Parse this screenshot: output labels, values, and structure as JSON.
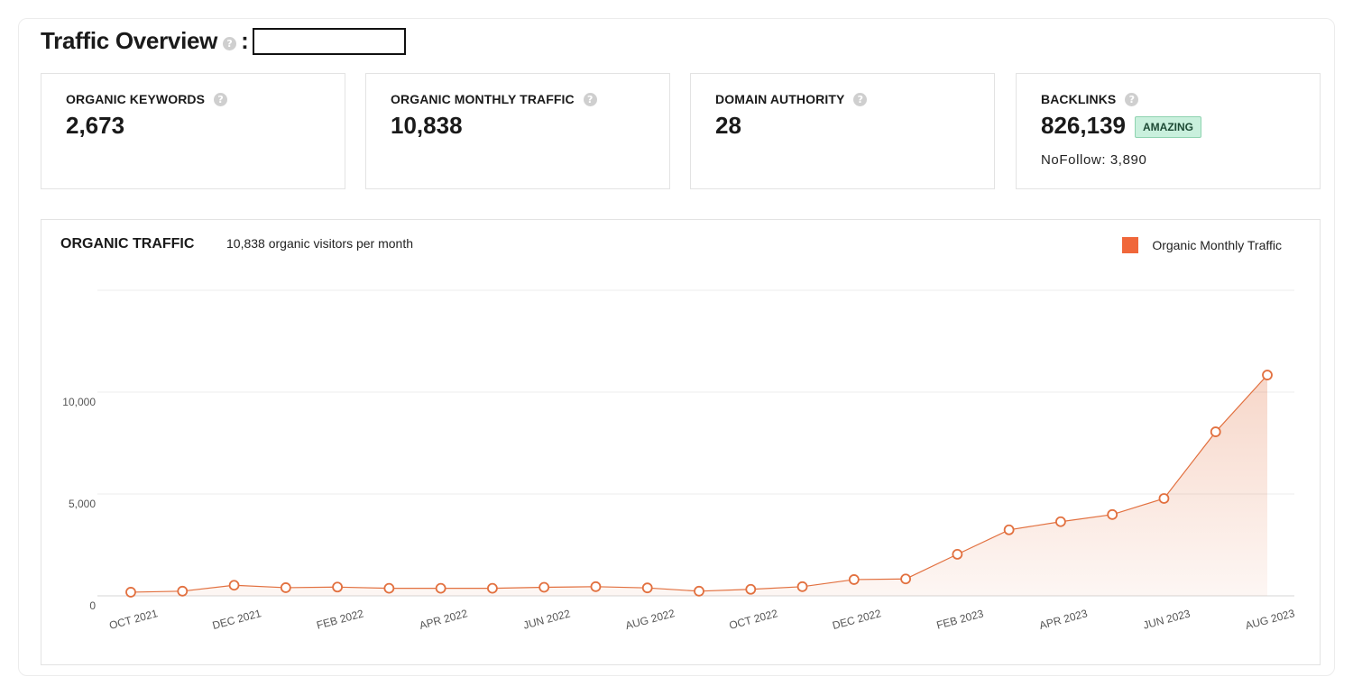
{
  "header": {
    "title": "Traffic Overview",
    "help_icon": "question-circle-icon",
    "separator": ":"
  },
  "cards": [
    {
      "label": "ORGANIC KEYWORDS",
      "value": "2,673"
    },
    {
      "label": "ORGANIC MONTHLY TRAFFIC",
      "value": "10,838"
    },
    {
      "label": "DOMAIN AUTHORITY",
      "value": "28"
    },
    {
      "label": "BACKLINKS",
      "value": "826,139",
      "badge": "AMAZING",
      "sub": "NoFollow: 3,890"
    }
  ],
  "chart_panel": {
    "title": "ORGANIC TRAFFIC",
    "subtitle": "10,838 organic visitors per month",
    "legend_label": "Organic Monthly Traffic"
  },
  "colors": {
    "series": "#e2703f",
    "legend": "#f0673a",
    "badge_bg": "#c9f0dd"
  },
  "chart_data": {
    "type": "area",
    "x": [
      "OCT 2021",
      "NOV 2021",
      "DEC 2021",
      "JAN 2022",
      "FEB 2022",
      "MAR 2022",
      "APR 2022",
      "MAY 2022",
      "JUN 2022",
      "JUL 2022",
      "AUG 2022",
      "SEP 2022",
      "OCT 2022",
      "NOV 2022",
      "DEC 2022",
      "JAN 2023",
      "FEB 2023",
      "MAR 2023",
      "APR 2023",
      "MAY 2023",
      "JUN 2023",
      "JUL 2023",
      "AUG 2023"
    ],
    "x_tick_labels": [
      "OCT 2021",
      "DEC 2021",
      "FEB 2022",
      "APR 2022",
      "JUN 2022",
      "AUG 2022",
      "OCT 2022",
      "DEC 2022",
      "FEB 2023",
      "APR 2023",
      "JUN 2023",
      "AUG 2023"
    ],
    "series": [
      {
        "name": "Organic Monthly Traffic",
        "values": [
          180,
          230,
          520,
          400,
          430,
          370,
          370,
          370,
          420,
          450,
          390,
          230,
          320,
          450,
          800,
          830,
          2040,
          3240,
          3640,
          3990,
          4780,
          8050,
          10838
        ]
      }
    ],
    "y_ticks": [
      0,
      5000,
      10000
    ],
    "y_tick_labels": [
      "0",
      "5,000",
      "10,000"
    ],
    "ylim": [
      0,
      15000
    ],
    "grid": true,
    "legend_position": "top-right"
  }
}
